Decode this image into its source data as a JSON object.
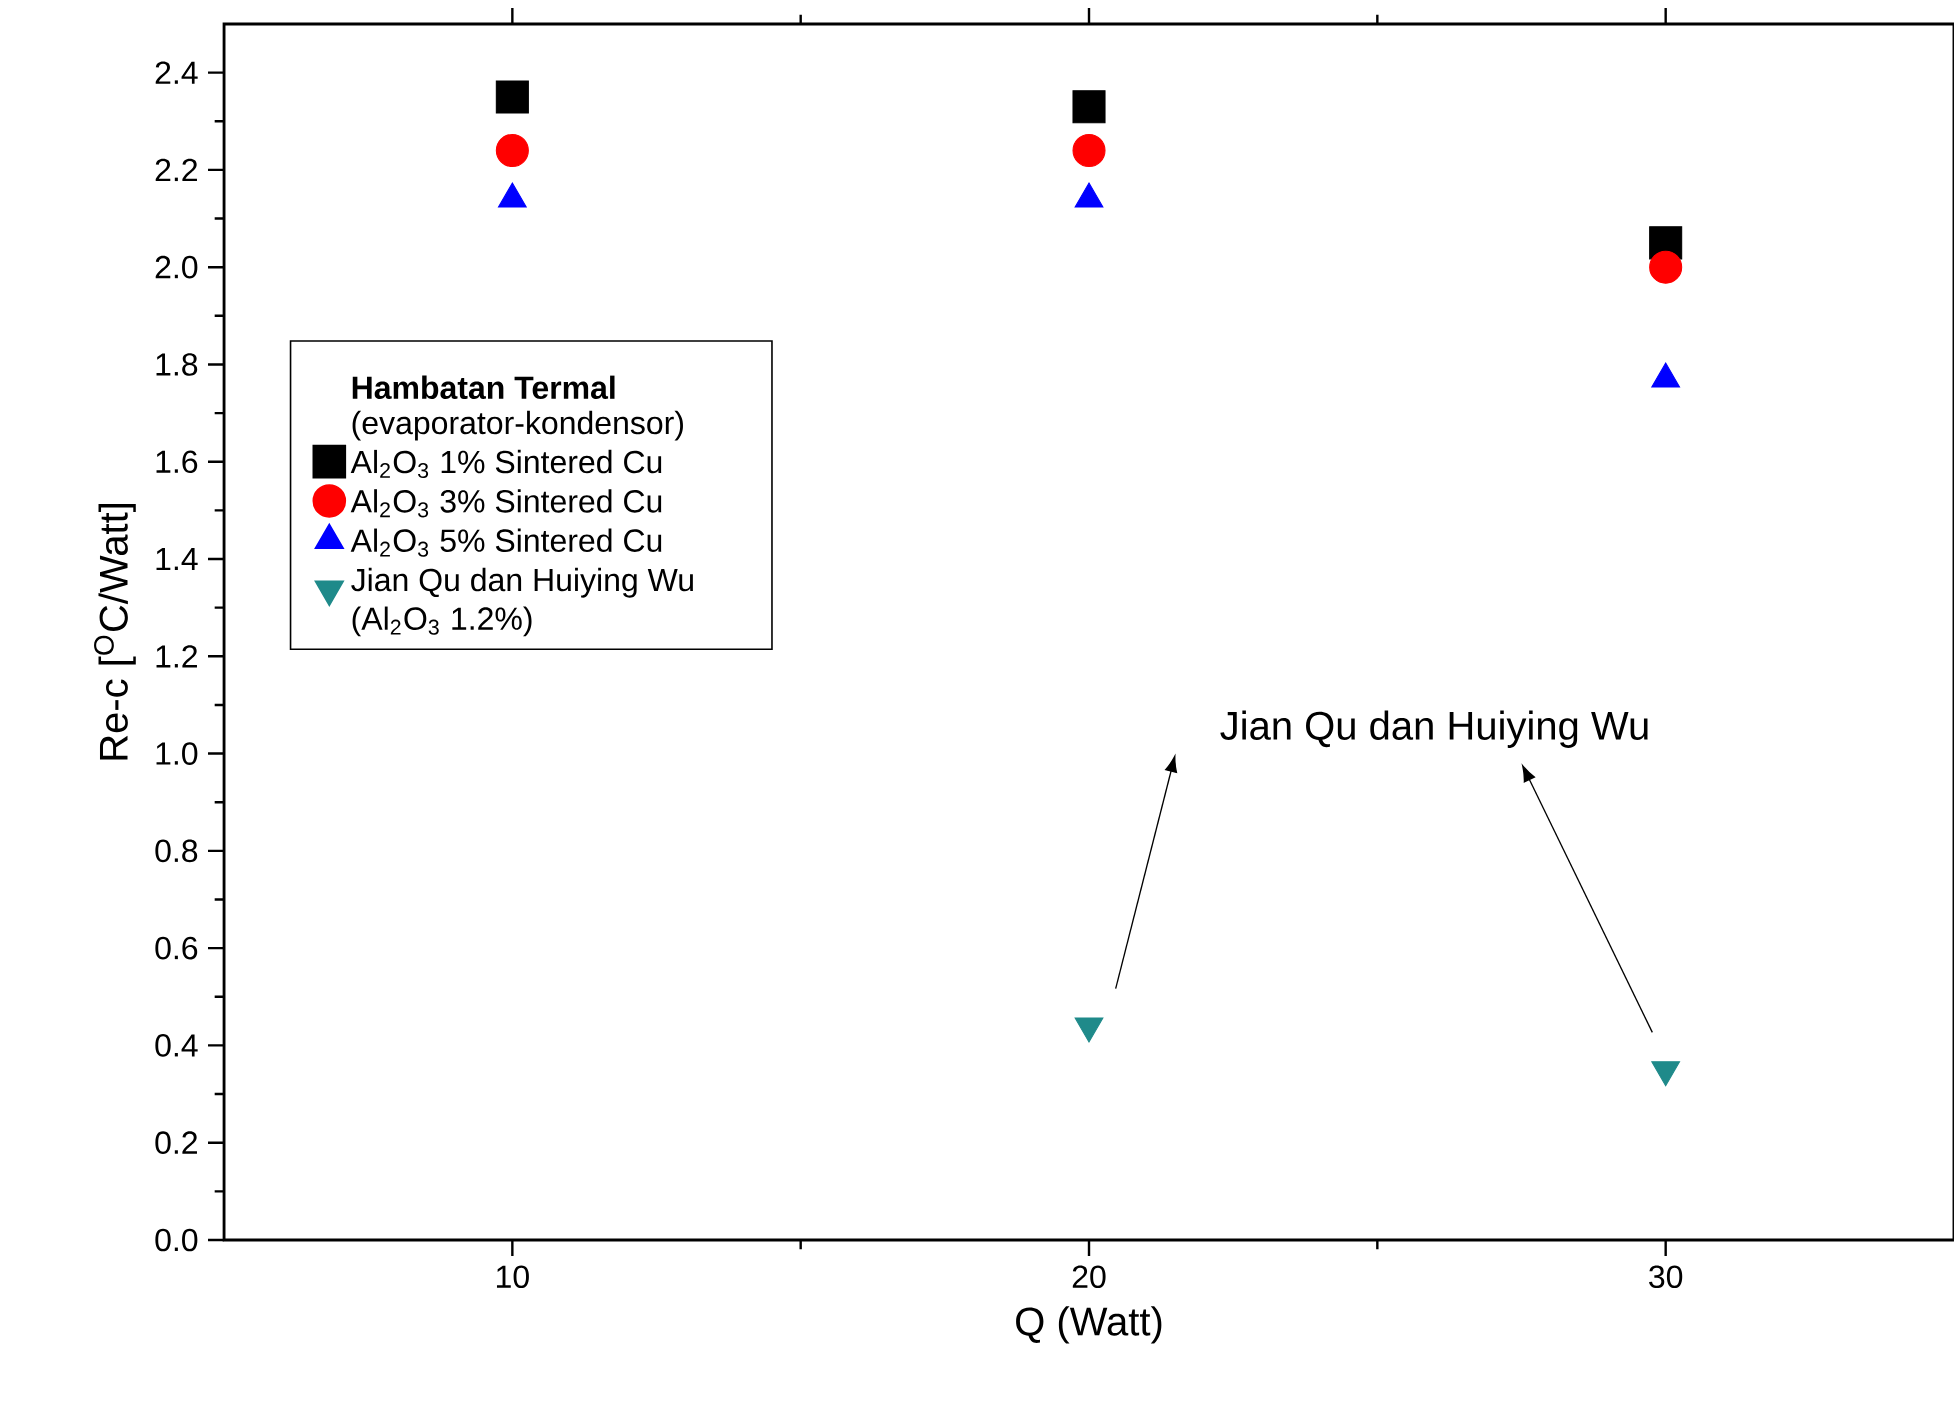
{
  "chart_data": {
    "type": "scatter",
    "xlabel": "Q (Watt)",
    "ylabel": "Re-c [$^{O}$C/Watt]",
    "legend_title": "**Hambatan Termal**",
    "annotations": [
      "(evaporator-kondensor)",
      "Jian Qu dan Huiying Wu"
    ],
    "x": [
      10,
      20,
      30
    ],
    "series": [
      {
        "name": "Al$_{2}$O$_{3}$ 1% Sintered Cu",
        "color": "#000000",
        "marker": "square",
        "values": [
          2.35,
          2.33,
          2.05
        ]
      },
      {
        "name": "Al$_{2}$O$_{3}$ 3% Sintered Cu",
        "color": "#ff0000",
        "marker": "circle",
        "values": [
          2.24,
          2.24,
          2.0
        ]
      },
      {
        "name": "Al$_{2}$O$_{3}$ 5% Sintered Cu",
        "color": "#0000ff",
        "marker": "triangle",
        "values": [
          2.14,
          2.14,
          1.77
        ]
      },
      {
        "name": "Jian Qu dan Huiying Wu (Al$_{2}$O$_{3}$ 1.2%)",
        "color": "#1f8a8a",
        "marker": "triangle-down",
        "values": [
          null,
          0.44,
          0.35
        ]
      }
    ],
    "xlim": [
      5,
      35
    ],
    "xticks": [
      10,
      20,
      30
    ],
    "ylim": [
      0,
      2.5
    ],
    "yticks": [
      {
        "value": 0,
        "label": "0.0"
      },
      {
        "value": 0.2,
        "label": "0.2"
      },
      {
        "value": 0.4,
        "label": "0.4"
      },
      {
        "value": 0.6,
        "label": "0.6"
      },
      {
        "value": 0.8,
        "label": "0.8"
      },
      {
        "value": 1.0,
        "label": "1.0"
      },
      {
        "value": 1.2,
        "label": "1.2"
      },
      {
        "value": 1.4,
        "label": "1.4"
      },
      {
        "value": 1.6,
        "label": "1.6"
      },
      {
        "value": 1.8,
        "label": "1.8"
      },
      {
        "value": 2.0,
        "label": "2.0"
      },
      {
        "value": 2.2,
        "label": "2.2"
      },
      {
        "value": 2.4,
        "label": "2.4"
      }
    ],
    "legend": "left",
    "grid": false
  }
}
